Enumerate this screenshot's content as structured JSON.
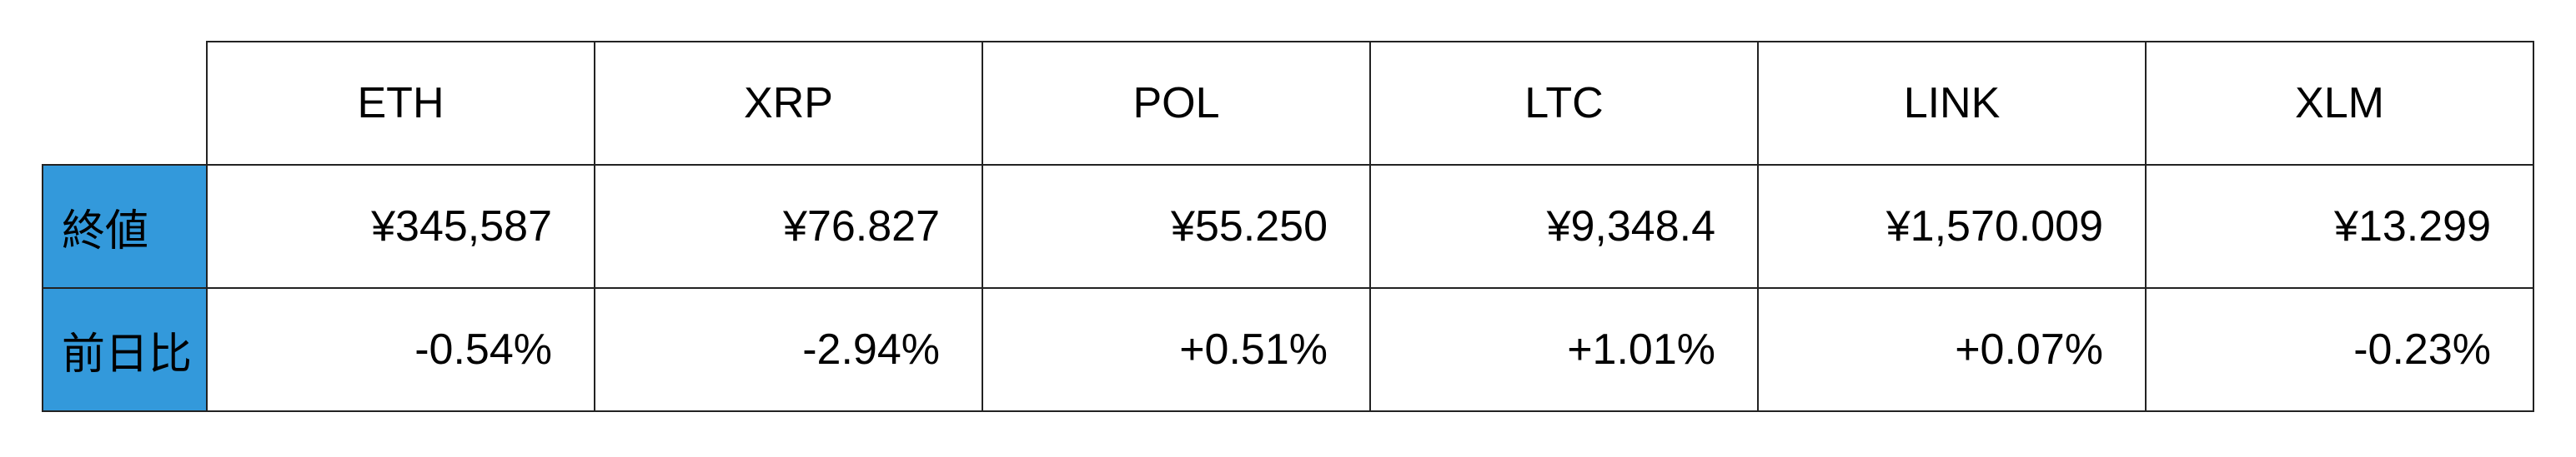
{
  "table": {
    "columns": [
      "ETH",
      "XRP",
      "POL",
      "LTC",
      "LINK",
      "XLM"
    ],
    "rows": [
      {
        "label": "終値",
        "values": [
          "¥345,587",
          "¥76.827",
          "¥55.250",
          "¥9,348.4",
          "¥1,570.009",
          "¥13.299"
        ]
      },
      {
        "label": "前日比",
        "values": [
          "-0.54%",
          "-2.94%",
          "+0.51%",
          "+1.01%",
          "+0.07%",
          "-0.23%"
        ]
      }
    ],
    "label_color": "#3399db"
  }
}
